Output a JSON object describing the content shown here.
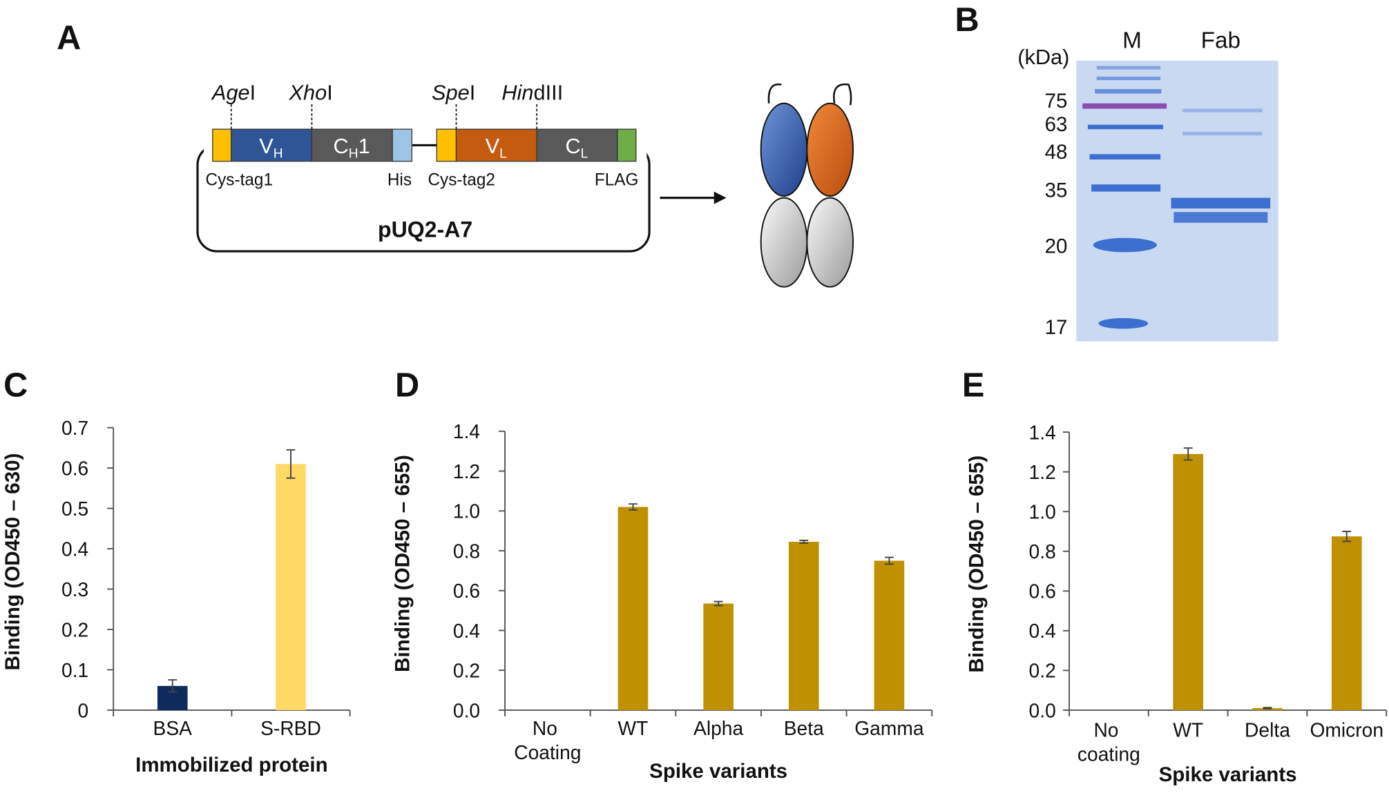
{
  "panel_labels": [
    "A",
    "B",
    "C",
    "D",
    "E"
  ],
  "diagram": {
    "sites": [
      {
        "italic": "Age",
        "suffix": "I"
      },
      {
        "italic": "Xho",
        "suffix": "I"
      },
      {
        "italic": "Spe",
        "suffix": "I"
      },
      {
        "italic": "Hin",
        "suffix": "dIII"
      }
    ],
    "segments": [
      {
        "main": "V",
        "sub": "H"
      },
      {
        "main": "C",
        "sub": "H",
        "suffix": "1"
      },
      {
        "main": "V",
        "sub": "L"
      },
      {
        "main": "C",
        "sub": "L"
      }
    ],
    "tags": [
      "Cys-tag1",
      "His",
      "Cys-tag2",
      "FLAG"
    ],
    "plasmid": "pUQ2-A7"
  },
  "gel": {
    "unit": "(kDa)",
    "lanes": [
      "M",
      "Fab"
    ],
    "markers": [
      "75",
      "63",
      "48",
      "35",
      "20",
      "17"
    ]
  },
  "chart_data": [
    {
      "type": "bar",
      "y_label": "Binding (OD450 – 630)",
      "x_label": "Immobilized protein",
      "categories": [
        "BSA",
        "S-RBD"
      ],
      "values": [
        0.06,
        0.61
      ],
      "errors": [
        0.015,
        0.035
      ],
      "colors": [
        "#0f2a5c",
        "#ffd966"
      ],
      "ylim": [
        0,
        0.7
      ],
      "yticks": [
        0,
        0.1,
        0.2,
        0.3,
        0.4,
        0.5,
        0.6,
        0.7
      ]
    },
    {
      "type": "bar",
      "y_label": "Binding (OD450 – 655)",
      "x_label": "Spike variants",
      "categories": [
        "No Coating",
        "WT",
        "Alpha",
        "Beta",
        "Gamma"
      ],
      "values": [
        0,
        1.02,
        0.535,
        0.845,
        0.75
      ],
      "errors": [
        null,
        0.015,
        0.01,
        0.007,
        0.017
      ],
      "colors": [
        "#bf9000",
        "#bf9000",
        "#bf9000",
        "#bf9000",
        "#bf9000"
      ],
      "ylim": [
        0,
        1.4
      ],
      "yticks": [
        {
          "value": 0,
          "label": "0.0"
        },
        0.2,
        0.4,
        0.6,
        0.8,
        {
          "value": 1,
          "label": "1.0"
        },
        1.2,
        1.4
      ]
    },
    {
      "type": "bar",
      "y_label": "Binding (OD450 – 655)",
      "x_label": "Spike variants",
      "categories": [
        "No coating",
        "WT",
        "Delta",
        "Omicron"
      ],
      "values": [
        0,
        1.29,
        0.01,
        0.875
      ],
      "errors": [
        null,
        0.03,
        0.003,
        0.025
      ],
      "colors": [
        "#bf9000",
        "#bf9000",
        "#bf9000",
        "#bf9000"
      ],
      "ylim": [
        0,
        1.4
      ],
      "yticks": [
        {
          "value": 0,
          "label": "0.0"
        },
        0.2,
        0.4,
        0.6,
        0.8,
        {
          "value": 1,
          "label": "1.0"
        },
        1.2,
        1.4
      ]
    }
  ]
}
